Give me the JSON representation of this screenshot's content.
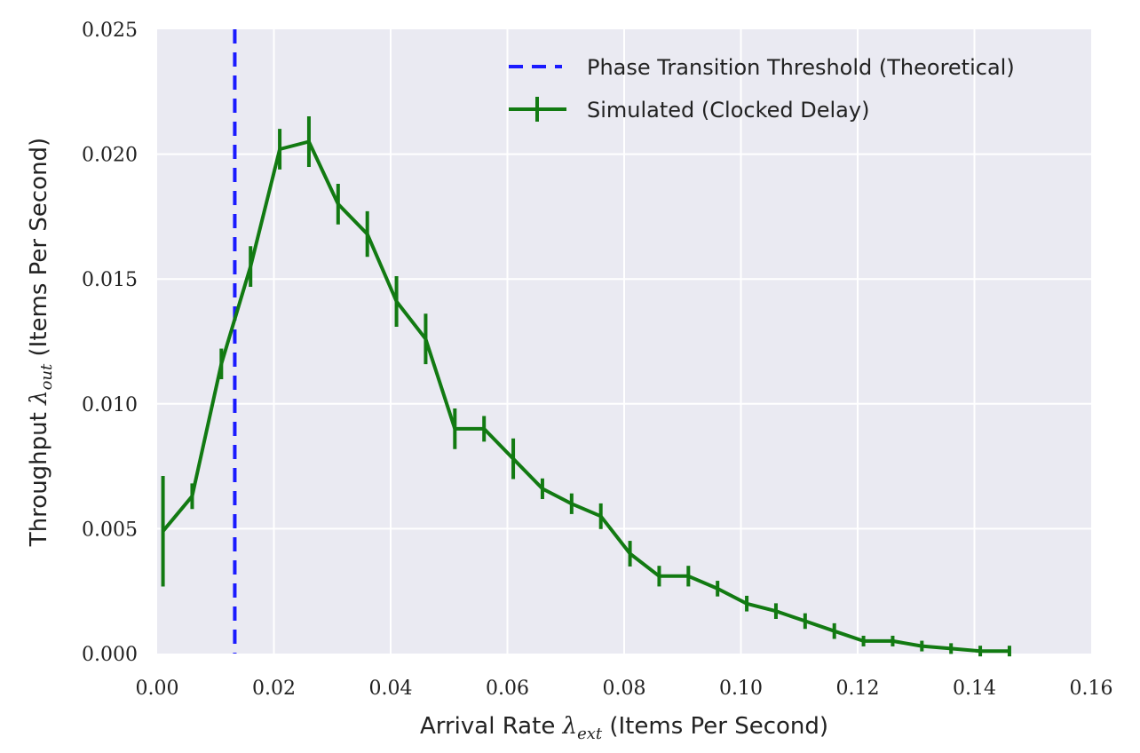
{
  "chart_data": {
    "type": "line",
    "xlabel": {
      "prefix": "Arrival Rate ",
      "symbol": "λ",
      "subscript": "ext",
      "suffix": " (Items Per Second)"
    },
    "ylabel": {
      "prefix": "Throughput ",
      "symbol": "λ",
      "subscript": "out",
      "suffix": " (Items Per Second)"
    },
    "xlim": [
      0,
      0.16
    ],
    "ylim": [
      0,
      0.025
    ],
    "xticks": [
      "0.00",
      "0.02",
      "0.04",
      "0.06",
      "0.08",
      "0.10",
      "0.12",
      "0.14",
      "0.16"
    ],
    "yticks": [
      "0.000",
      "0.005",
      "0.010",
      "0.015",
      "0.020",
      "0.025"
    ],
    "grid": true,
    "legend_position": "top-right",
    "threshold": {
      "name": "Phase Transition Threshold (Theoretical)",
      "x": 0.0133,
      "color": "#1a1aff",
      "style": "dashed"
    },
    "series": [
      {
        "name": "Simulated (Clocked Delay)",
        "color": "#127a12",
        "x": [
          0.001,
          0.006,
          0.011,
          0.016,
          0.021,
          0.026,
          0.031,
          0.036,
          0.041,
          0.046,
          0.051,
          0.056,
          0.061,
          0.066,
          0.071,
          0.076,
          0.081,
          0.086,
          0.091,
          0.096,
          0.101,
          0.106,
          0.111,
          0.116,
          0.121,
          0.126,
          0.131,
          0.136,
          0.141,
          0.146
        ],
        "y": [
          0.0049,
          0.0063,
          0.0116,
          0.0155,
          0.0202,
          0.0205,
          0.018,
          0.0168,
          0.0141,
          0.0126,
          0.009,
          0.009,
          0.0078,
          0.0066,
          0.006,
          0.0055,
          0.004,
          0.0031,
          0.0031,
          0.0026,
          0.002,
          0.0017,
          0.0013,
          0.0009,
          0.0005,
          0.0005,
          0.0003,
          0.0002,
          0.0001,
          0.0001
        ],
        "err": [
          0.002,
          0.0003,
          0.0004,
          0.0006,
          0.0006,
          0.0008,
          0.0006,
          0.0007,
          0.0008,
          0.0008,
          0.0006,
          0.0003,
          0.0006,
          0.0002,
          0.0002,
          0.0003,
          0.0003,
          0.0002,
          0.0002,
          0.0001,
          0.0001,
          0.0001,
          0.0001,
          0.0001,
          0,
          0,
          0,
          0,
          0,
          0
        ]
      }
    ]
  }
}
